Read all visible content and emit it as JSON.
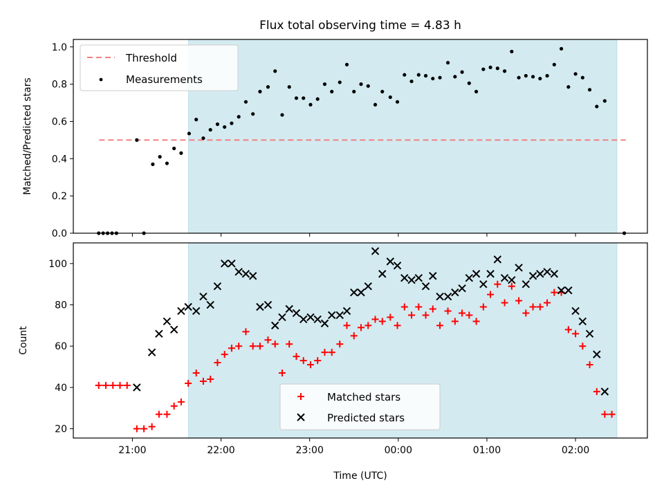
{
  "chart_data": [
    {
      "type": "scatter",
      "title": "Flux total observing time = 4.83 h",
      "xlabel": "",
      "ylabel": "Matched/Predicted stars",
      "ylim": [
        0,
        1.04
      ],
      "xlim": [
        -0.6667,
        5.8111
      ],
      "x_ticks": [
        {
          "value": 0,
          "label": ""
        },
        {
          "value": 1,
          "label": ""
        },
        {
          "value": 2,
          "label": ""
        },
        {
          "value": 3,
          "label": ""
        },
        {
          "value": 4,
          "label": ""
        },
        {
          "value": 5,
          "label": ""
        }
      ],
      "y_ticks": [
        {
          "value": 0,
          "label": "0.0"
        },
        {
          "value": 0.2,
          "label": "0.2"
        },
        {
          "value": 0.4,
          "label": "0.4"
        },
        {
          "value": 0.6,
          "label": "0.6"
        },
        {
          "value": 0.8,
          "label": "0.8"
        },
        {
          "value": 1.0,
          "label": "1.0"
        }
      ],
      "observing_window": [
        0.6333,
        5.4667
      ],
      "window_color": "#d3eaf0",
      "legend_position": "upper-left",
      "threshold": {
        "name": "Threshold",
        "value": 0.5,
        "x_range": [
          -0.375,
          5.567
        ],
        "color": "#f08080"
      },
      "series": [
        {
          "name": "Measurements",
          "color": "#000000",
          "points": [
            [
              -0.38,
              0
            ],
            [
              -0.33,
              0
            ],
            [
              -0.28,
              0
            ],
            [
              -0.23,
              0
            ],
            [
              -0.18,
              0
            ],
            [
              0.05,
              0.5
            ],
            [
              0.13,
              0
            ],
            [
              0.23,
              0.37
            ],
            [
              0.31,
              0.41
            ],
            [
              0.39,
              0.375
            ],
            [
              0.47,
              0.455
            ],
            [
              0.55,
              0.43
            ],
            [
              0.64,
              0.535
            ],
            [
              0.72,
              0.61
            ],
            [
              0.8,
              0.51
            ],
            [
              0.88,
              0.555
            ],
            [
              0.96,
              0.585
            ],
            [
              1.04,
              0.57
            ],
            [
              1.12,
              0.59
            ],
            [
              1.2,
              0.625
            ],
            [
              1.28,
              0.705
            ],
            [
              1.36,
              0.64
            ],
            [
              1.44,
              0.76
            ],
            [
              1.53,
              0.785
            ],
            [
              1.61,
              0.87
            ],
            [
              1.69,
              0.635
            ],
            [
              1.77,
              0.785
            ],
            [
              1.85,
              0.725
            ],
            [
              1.93,
              0.725
            ],
            [
              2.01,
              0.69
            ],
            [
              2.09,
              0.72
            ],
            [
              2.17,
              0.8
            ],
            [
              2.25,
              0.76
            ],
            [
              2.34,
              0.81
            ],
            [
              2.42,
              0.905
            ],
            [
              2.5,
              0.76
            ],
            [
              2.58,
              0.8
            ],
            [
              2.66,
              0.79
            ],
            [
              2.74,
              0.69
            ],
            [
              2.82,
              0.76
            ],
            [
              2.91,
              0.73
            ],
            [
              2.99,
              0.705
            ],
            [
              3.07,
              0.85
            ],
            [
              3.15,
              0.815
            ],
            [
              3.23,
              0.85
            ],
            [
              3.31,
              0.845
            ],
            [
              3.39,
              0.83
            ],
            [
              3.47,
              0.835
            ],
            [
              3.56,
              0.915
            ],
            [
              3.64,
              0.84
            ],
            [
              3.72,
              0.865
            ],
            [
              3.8,
              0.805
            ],
            [
              3.88,
              0.76
            ],
            [
              3.96,
              0.88
            ],
            [
              4.04,
              0.89
            ],
            [
              4.12,
              0.885
            ],
            [
              4.2,
              0.87
            ],
            [
              4.28,
              0.975
            ],
            [
              4.36,
              0.835
            ],
            [
              4.44,
              0.845
            ],
            [
              4.52,
              0.84
            ],
            [
              4.6,
              0.83
            ],
            [
              4.68,
              0.845
            ],
            [
              4.76,
              0.905
            ],
            [
              4.84,
              0.99
            ],
            [
              4.92,
              0.785
            ],
            [
              5.0,
              0.855
            ],
            [
              5.08,
              0.835
            ],
            [
              5.16,
              0.77
            ],
            [
              5.24,
              0.68
            ],
            [
              5.33,
              0.71
            ],
            [
              5.55,
              0
            ]
          ]
        }
      ]
    },
    {
      "type": "scatter",
      "title": "",
      "xlabel": "Time (UTC)",
      "ylabel": "Count",
      "ylim": [
        15.5,
        110
      ],
      "xlim": [
        -0.6667,
        5.8111
      ],
      "x_ticks": [
        {
          "value": 0,
          "label": "21:00"
        },
        {
          "value": 1,
          "label": "22:00"
        },
        {
          "value": 2,
          "label": "23:00"
        },
        {
          "value": 3,
          "label": "00:00"
        },
        {
          "value": 4,
          "label": "01:00"
        },
        {
          "value": 5,
          "label": "02:00"
        }
      ],
      "y_ticks": [
        {
          "value": 20,
          "label": "20"
        },
        {
          "value": 40,
          "label": "40"
        },
        {
          "value": 60,
          "label": "60"
        },
        {
          "value": 80,
          "label": "80"
        },
        {
          "value": 100,
          "label": "100"
        }
      ],
      "observing_window": [
        0.6333,
        5.4667
      ],
      "window_color": "#d3eaf0",
      "legend_position": "lower-center",
      "series": [
        {
          "name": "Matched stars",
          "marker": "plus",
          "color": "#ff0000",
          "points": [
            [
              -0.38,
              41
            ],
            [
              -0.3,
              41
            ],
            [
              -0.22,
              41
            ],
            [
              -0.14,
              41
            ],
            [
              -0.06,
              41
            ],
            [
              0.05,
              20
            ],
            [
              0.13,
              20
            ],
            [
              0.22,
              21
            ],
            [
              0.3,
              27
            ],
            [
              0.39,
              27
            ],
            [
              0.47,
              31
            ],
            [
              0.55,
              33
            ],
            [
              0.63,
              42
            ],
            [
              0.72,
              47
            ],
            [
              0.8,
              43
            ],
            [
              0.88,
              44
            ],
            [
              0.96,
              52
            ],
            [
              1.04,
              56
            ],
            [
              1.12,
              59
            ],
            [
              1.2,
              60
            ],
            [
              1.28,
              67
            ],
            [
              1.36,
              60
            ],
            [
              1.44,
              60
            ],
            [
              1.53,
              63
            ],
            [
              1.61,
              61
            ],
            [
              1.69,
              47
            ],
            [
              1.77,
              61
            ],
            [
              1.85,
              55
            ],
            [
              1.93,
              53
            ],
            [
              2.01,
              51
            ],
            [
              2.09,
              53
            ],
            [
              2.17,
              57
            ],
            [
              2.25,
              57
            ],
            [
              2.34,
              61
            ],
            [
              2.42,
              70
            ],
            [
              2.5,
              65
            ],
            [
              2.58,
              69
            ],
            [
              2.66,
              70
            ],
            [
              2.74,
              73
            ],
            [
              2.82,
              72
            ],
            [
              2.91,
              74
            ],
            [
              2.99,
              70
            ],
            [
              3.07,
              79
            ],
            [
              3.15,
              75
            ],
            [
              3.23,
              79
            ],
            [
              3.31,
              75
            ],
            [
              3.39,
              78
            ],
            [
              3.47,
              70
            ],
            [
              3.56,
              77
            ],
            [
              3.64,
              72
            ],
            [
              3.72,
              76
            ],
            [
              3.8,
              75
            ],
            [
              3.88,
              72
            ],
            [
              3.96,
              79
            ],
            [
              4.04,
              85
            ],
            [
              4.12,
              90
            ],
            [
              4.2,
              81
            ],
            [
              4.28,
              89
            ],
            [
              4.36,
              82
            ],
            [
              4.44,
              76
            ],
            [
              4.52,
              79
            ],
            [
              4.6,
              79
            ],
            [
              4.68,
              81
            ],
            [
              4.76,
              86
            ],
            [
              4.84,
              86
            ],
            [
              4.92,
              68
            ],
            [
              5.0,
              66
            ],
            [
              5.08,
              60
            ],
            [
              5.16,
              51
            ],
            [
              5.24,
              38
            ],
            [
              5.33,
              27
            ],
            [
              5.41,
              27
            ]
          ]
        },
        {
          "name": "Predicted stars",
          "marker": "cross",
          "color": "#000000",
          "points": [
            [
              0.05,
              40
            ],
            [
              0.22,
              57
            ],
            [
              0.3,
              66
            ],
            [
              0.39,
              72
            ],
            [
              0.47,
              68
            ],
            [
              0.55,
              77
            ],
            [
              0.63,
              79
            ],
            [
              0.72,
              77
            ],
            [
              0.8,
              84
            ],
            [
              0.88,
              80
            ],
            [
              0.96,
              89
            ],
            [
              1.04,
              100
            ],
            [
              1.12,
              100
            ],
            [
              1.2,
              96
            ],
            [
              1.28,
              95
            ],
            [
              1.36,
              94
            ],
            [
              1.44,
              79
            ],
            [
              1.53,
              80
            ],
            [
              1.61,
              70
            ],
            [
              1.69,
              74
            ],
            [
              1.77,
              78
            ],
            [
              1.85,
              76
            ],
            [
              1.93,
              73
            ],
            [
              2.01,
              74
            ],
            [
              2.09,
              73
            ],
            [
              2.17,
              71
            ],
            [
              2.25,
              75
            ],
            [
              2.34,
              75
            ],
            [
              2.42,
              77
            ],
            [
              2.5,
              86
            ],
            [
              2.58,
              86
            ],
            [
              2.66,
              89
            ],
            [
              2.74,
              106
            ],
            [
              2.82,
              95
            ],
            [
              2.91,
              101
            ],
            [
              2.99,
              99
            ],
            [
              3.07,
              93
            ],
            [
              3.15,
              92
            ],
            [
              3.23,
              93
            ],
            [
              3.31,
              89
            ],
            [
              3.39,
              94
            ],
            [
              3.47,
              84
            ],
            [
              3.56,
              84
            ],
            [
              3.64,
              86
            ],
            [
              3.72,
              88
            ],
            [
              3.8,
              93
            ],
            [
              3.88,
              95
            ],
            [
              3.96,
              90
            ],
            [
              4.04,
              95
            ],
            [
              4.12,
              102
            ],
            [
              4.2,
              93
            ],
            [
              4.28,
              92
            ],
            [
              4.36,
              98
            ],
            [
              4.44,
              90
            ],
            [
              4.52,
              94
            ],
            [
              4.6,
              95
            ],
            [
              4.68,
              96
            ],
            [
              4.76,
              95
            ],
            [
              4.84,
              87
            ],
            [
              4.92,
              87
            ],
            [
              5.0,
              77
            ],
            [
              5.08,
              72
            ],
            [
              5.16,
              66
            ],
            [
              5.24,
              56
            ],
            [
              5.33,
              38
            ]
          ]
        }
      ]
    }
  ]
}
